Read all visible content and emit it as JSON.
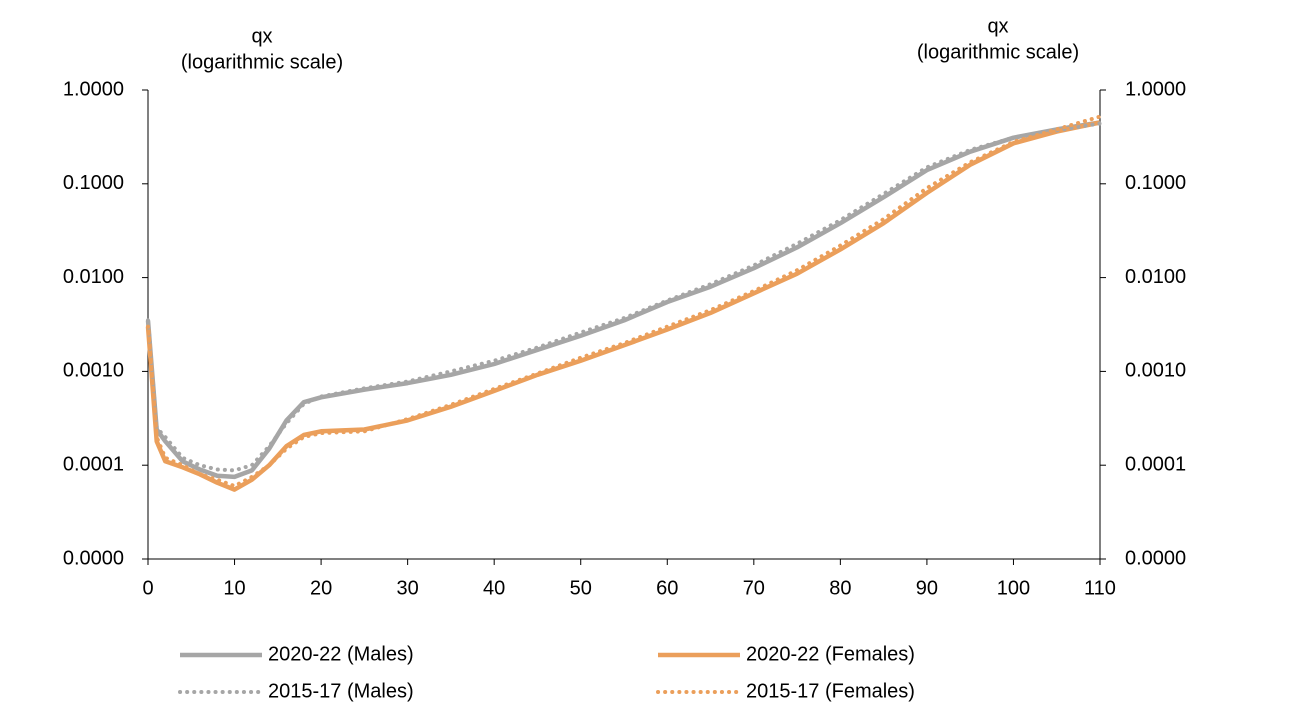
{
  "chart_data": {
    "type": "line",
    "log_scale": true,
    "legend": "bottom",
    "ylabel": [
      "qx",
      "(logarithmic scale)"
    ],
    "y2label": [
      "qx",
      "(logarithmic scale)"
    ],
    "x": [
      0,
      1,
      2,
      4,
      6,
      8,
      10,
      12,
      14,
      16,
      18,
      20,
      25,
      30,
      35,
      40,
      45,
      50,
      55,
      60,
      65,
      70,
      75,
      80,
      85,
      90,
      95,
      100,
      105,
      110
    ],
    "xlim": [
      0,
      110
    ],
    "xticks": [
      0,
      10,
      20,
      30,
      40,
      50,
      60,
      70,
      80,
      90,
      100,
      110
    ],
    "ylim": [
      1e-05,
      1
    ],
    "yticks": [
      {
        "value": 1e-05,
        "label": "0.0000"
      },
      {
        "value": 0.0001,
        "label": "0.0001"
      },
      {
        "value": 0.001,
        "label": "0.0010"
      },
      {
        "value": 0.01,
        "label": "0.0100"
      },
      {
        "value": 0.1,
        "label": "0.1000"
      },
      {
        "value": 1,
        "label": "1.0000"
      }
    ],
    "y2lim": [
      1e-05,
      1
    ],
    "y2ticks": [
      {
        "value": 1e-05,
        "label": "0.0000"
      },
      {
        "value": 0.0001,
        "label": "0.0001"
      },
      {
        "value": 0.001,
        "label": "0.0010"
      },
      {
        "value": 0.01,
        "label": "0.0100"
      },
      {
        "value": 0.1,
        "label": "0.1000"
      },
      {
        "value": 1,
        "label": "1.0000"
      }
    ],
    "series": [
      {
        "name": "2020-22 (Males)",
        "color": "#a6a6a6",
        "style": "solid",
        "values": [
          0.0035,
          0.00024,
          0.00018,
          0.00011,
          9e-05,
          7.7e-05,
          7.5e-05,
          8.8e-05,
          0.00015,
          0.0003,
          0.00047,
          0.00053,
          0.00064,
          0.00075,
          0.00092,
          0.0012,
          0.0017,
          0.0024,
          0.0035,
          0.0055,
          0.008,
          0.0126,
          0.021,
          0.038,
          0.072,
          0.14,
          0.22,
          0.31,
          0.38,
          0.45
        ]
      },
      {
        "name": "2020-22 (Females)",
        "color": "#eb9f5b",
        "style": "solid",
        "values": [
          0.003,
          0.00018,
          0.00011,
          9.5e-05,
          8e-05,
          6.5e-05,
          5.5e-05,
          7e-05,
          0.0001,
          0.00016,
          0.00021,
          0.00023,
          0.00024,
          0.0003,
          0.00042,
          0.00062,
          0.00092,
          0.0013,
          0.0019,
          0.0028,
          0.0042,
          0.0068,
          0.011,
          0.02,
          0.038,
          0.08,
          0.16,
          0.27,
          0.36,
          0.45
        ]
      },
      {
        "name": "2015-17 (Males)",
        "color": "#a6a6a6",
        "style": "dotted",
        "values": [
          0.0035,
          0.00025,
          0.0002,
          0.00012,
          0.0001,
          9e-05,
          8.8e-05,
          0.0001,
          0.00016,
          0.00028,
          0.00045,
          0.00054,
          0.00066,
          0.00078,
          0.001,
          0.0013,
          0.0018,
          0.0026,
          0.0037,
          0.0057,
          0.0085,
          0.0135,
          0.023,
          0.041,
          0.078,
          0.15,
          0.23,
          0.31,
          0.37,
          0.44
        ]
      },
      {
        "name": "2015-17 (Females)",
        "color": "#eb9f5b",
        "style": "dotted",
        "values": [
          0.003,
          0.0002,
          0.00012,
          0.0001,
          8e-05,
          7e-05,
          6e-05,
          7.5e-05,
          0.0001,
          0.00015,
          0.0002,
          0.00022,
          0.00023,
          0.00031,
          0.00044,
          0.00065,
          0.00095,
          0.0014,
          0.002,
          0.003,
          0.0045,
          0.0072,
          0.012,
          0.022,
          0.042,
          0.09,
          0.17,
          0.28,
          0.38,
          0.52
        ]
      }
    ]
  }
}
